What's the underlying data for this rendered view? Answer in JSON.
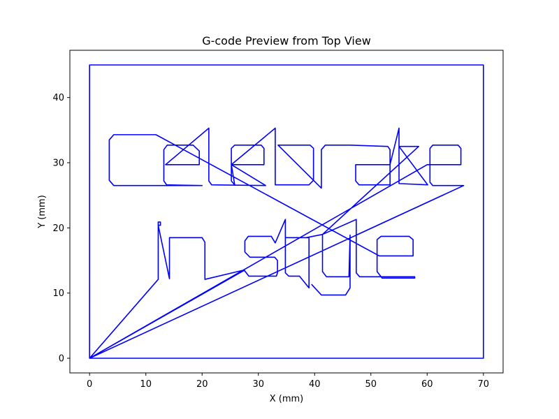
{
  "chart_data": {
    "type": "line",
    "title": "G-code Preview from Top View",
    "xlabel": "X (mm)",
    "ylabel": "Y (mm)",
    "xlim": [
      -3.5,
      73.5
    ],
    "ylim": [
      -2.25,
      47.25
    ],
    "xticks": [
      0,
      10,
      20,
      30,
      40,
      50,
      60,
      70
    ],
    "yticks": [
      0,
      10,
      20,
      30,
      40
    ],
    "grid": false,
    "line_color": "#0000ff",
    "series": [
      {
        "points": [
          [
            0,
            0
          ],
          [
            0,
            45
          ],
          [
            70,
            45
          ],
          [
            70,
            0
          ],
          [
            0,
            0
          ],
          [
            12.2,
            12.1
          ],
          [
            12.2,
            20.9
          ],
          [
            12.6,
            20.9
          ],
          [
            12.6,
            20.4
          ],
          [
            12.2,
            20.4
          ],
          [
            14.2,
            12.2
          ],
          [
            14.2,
            18.5
          ],
          [
            20,
            18.5
          ],
          [
            20.5,
            17.8
          ],
          [
            20.5,
            12.1
          ],
          [
            27.3,
            13.5
          ],
          [
            0,
            0
          ],
          [
            60,
            29.7
          ],
          [
            66,
            29.7
          ],
          [
            66,
            32.2
          ],
          [
            65.5,
            32.7
          ],
          [
            61,
            32.7
          ],
          [
            60.5,
            32.2
          ],
          [
            60.5,
            27
          ],
          [
            61,
            26.5
          ],
          [
            66.5,
            26.5
          ],
          [
            0,
            0
          ],
          [
            27.5,
            13.5
          ],
          [
            28.3,
            12.6
          ],
          [
            33.2,
            12.6
          ],
          [
            33.4,
            13.1
          ],
          [
            33.4,
            15
          ],
          [
            32.9,
            15.5
          ],
          [
            28.5,
            15.5
          ],
          [
            27.6,
            16.3
          ],
          [
            27.6,
            18
          ],
          [
            28.2,
            18.7
          ],
          [
            32.3,
            18.7
          ],
          [
            33,
            17.7
          ],
          [
            34.8,
            21.3
          ],
          [
            34.8,
            13.1
          ],
          [
            35.4,
            12.6
          ],
          [
            37.3,
            12.6
          ],
          [
            39,
            10.8
          ],
          [
            39,
            18.5
          ],
          [
            34.8,
            18.5
          ],
          [
            38.5,
            18.5
          ],
          [
            41.4,
            19
          ],
          [
            47.4,
            21.3
          ],
          [
            47.4,
            13.1
          ],
          [
            48,
            12.5
          ],
          [
            57.8,
            12.5
          ],
          [
            57.8,
            12.3
          ],
          [
            52,
            12.3
          ],
          [
            51.1,
            13.3
          ],
          [
            51.1,
            18.2
          ],
          [
            51.8,
            18.7
          ],
          [
            56.8,
            18.7
          ],
          [
            57.5,
            18.2
          ],
          [
            57.5,
            15.7
          ],
          [
            51.5,
            15.7
          ],
          [
            11.8,
            34.3
          ],
          [
            4.3,
            34.3
          ],
          [
            3.5,
            33.5
          ],
          [
            3.5,
            27.3
          ],
          [
            4.3,
            26.5
          ],
          [
            20,
            26.5
          ],
          [
            13.7,
            26.6
          ],
          [
            13.2,
            27.2
          ],
          [
            13.2,
            32
          ],
          [
            13.8,
            32.7
          ],
          [
            18.4,
            32.7
          ],
          [
            19.5,
            31.8
          ],
          [
            19.5,
            29.7
          ],
          [
            13.5,
            29.7
          ],
          [
            21.2,
            35.3
          ],
          [
            21.2,
            27.2
          ],
          [
            21.7,
            26.6
          ],
          [
            31.3,
            26.5
          ],
          [
            25.2,
            29.7
          ],
          [
            31,
            29.7
          ],
          [
            31,
            32.2
          ],
          [
            30.5,
            32.7
          ],
          [
            25.8,
            32.7
          ],
          [
            25.2,
            32.2
          ],
          [
            25.2,
            27.2
          ],
          [
            25.8,
            26.6
          ],
          [
            25.2,
            29.7
          ],
          [
            33,
            35.3
          ],
          [
            33,
            26.6
          ],
          [
            39,
            26.6
          ],
          [
            39.8,
            27.3
          ],
          [
            39.8,
            32.2
          ],
          [
            39.2,
            32.7
          ],
          [
            33.5,
            32.7
          ],
          [
            41.2,
            26.1
          ],
          [
            41.2,
            32
          ],
          [
            41.9,
            32.7
          ],
          [
            46.2,
            32.7
          ],
          [
            53,
            32.5
          ],
          [
            53.4,
            32
          ],
          [
            53.4,
            26.6
          ],
          [
            47.9,
            26.6
          ],
          [
            47.3,
            27.2
          ],
          [
            47.3,
            29.7
          ],
          [
            53.4,
            29.7
          ],
          [
            55,
            35.3
          ],
          [
            55,
            26.8
          ],
          [
            60.1,
            26.6
          ],
          [
            55,
            32.5
          ],
          [
            58.5,
            32.5
          ],
          [
            41.4,
            19
          ],
          [
            41.4,
            13.3
          ],
          [
            42.1,
            12.5
          ],
          [
            46.1,
            12.5
          ],
          [
            46.3,
            18.9
          ],
          [
            46.3,
            10.8
          ],
          [
            45.5,
            9.7
          ],
          [
            41.2,
            9.7
          ],
          [
            39.5,
            11.3
          ]
        ]
      }
    ]
  }
}
